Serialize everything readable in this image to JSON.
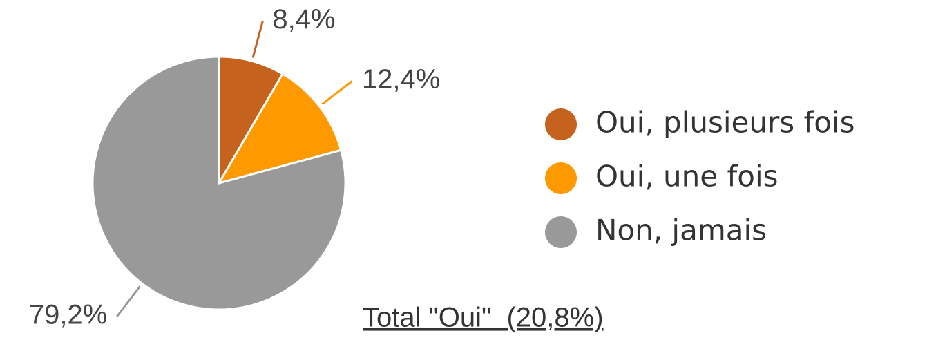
{
  "chart_data": {
    "type": "pie",
    "categories": [
      "Oui, plusieurs fois",
      "Oui, une fois",
      "Non, jamais"
    ],
    "values": [
      8.4,
      12.4,
      79.2
    ],
    "value_labels": [
      "8,4%",
      "12,4%",
      "79,2%"
    ],
    "colors": [
      "#c5621d",
      "#ff9900",
      "#999999"
    ],
    "legend": "right",
    "annotation": "Total \"Oui\"  (20,8%)"
  }
}
